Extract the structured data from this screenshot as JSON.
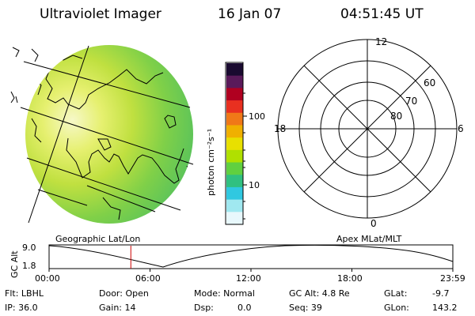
{
  "header": {
    "title": "Ultraviolet Imager",
    "date": "16 Jan 07",
    "time": "04:51:45 UT"
  },
  "colorbar": {
    "unit_label": "photon cm⁻²s⁻¹",
    "ticks": [
      "100",
      "10"
    ],
    "colors": [
      "#1a0a30",
      "#5a1a5a",
      "#b00020",
      "#e83020",
      "#f07818",
      "#f0b000",
      "#e8e000",
      "#b0e000",
      "#60d040",
      "#30c080",
      "#30c8e0",
      "#a0e8f0",
      "#e8f8fc"
    ]
  },
  "polar_plot": {
    "mlt_labels": [
      "12",
      "18",
      "6",
      "0"
    ],
    "lat_labels": [
      "60",
      "70",
      "80"
    ]
  },
  "timeline": {
    "left_title": "Geographic Lat/Lon",
    "right_title": "Apex  MLat/MLT",
    "y_axis_label": "GC Alt",
    "y_ticks": [
      "9.0",
      "1.8"
    ],
    "x_ticks": [
      "00:00",
      "06:00",
      "12:00",
      "18:00",
      "23:59"
    ],
    "marker_time_hours": 4.86
  },
  "status": {
    "flt": "Flt: LBHL",
    "ip": "IP: 36.0",
    "door": "Door: Open",
    "gain": "Gain: 14",
    "mode": "Mode: Normal",
    "dsp_label": "Dsp:",
    "dsp_value": "0.0",
    "gc_alt": "GC Alt: 4.8 Re",
    "seq": "Seq: 39",
    "glat_label": "GLat:",
    "glat_value": "-9.7",
    "glon_label": "GLon:",
    "glon_value": "143.2"
  },
  "colors": {
    "marker": "#cc0000"
  }
}
